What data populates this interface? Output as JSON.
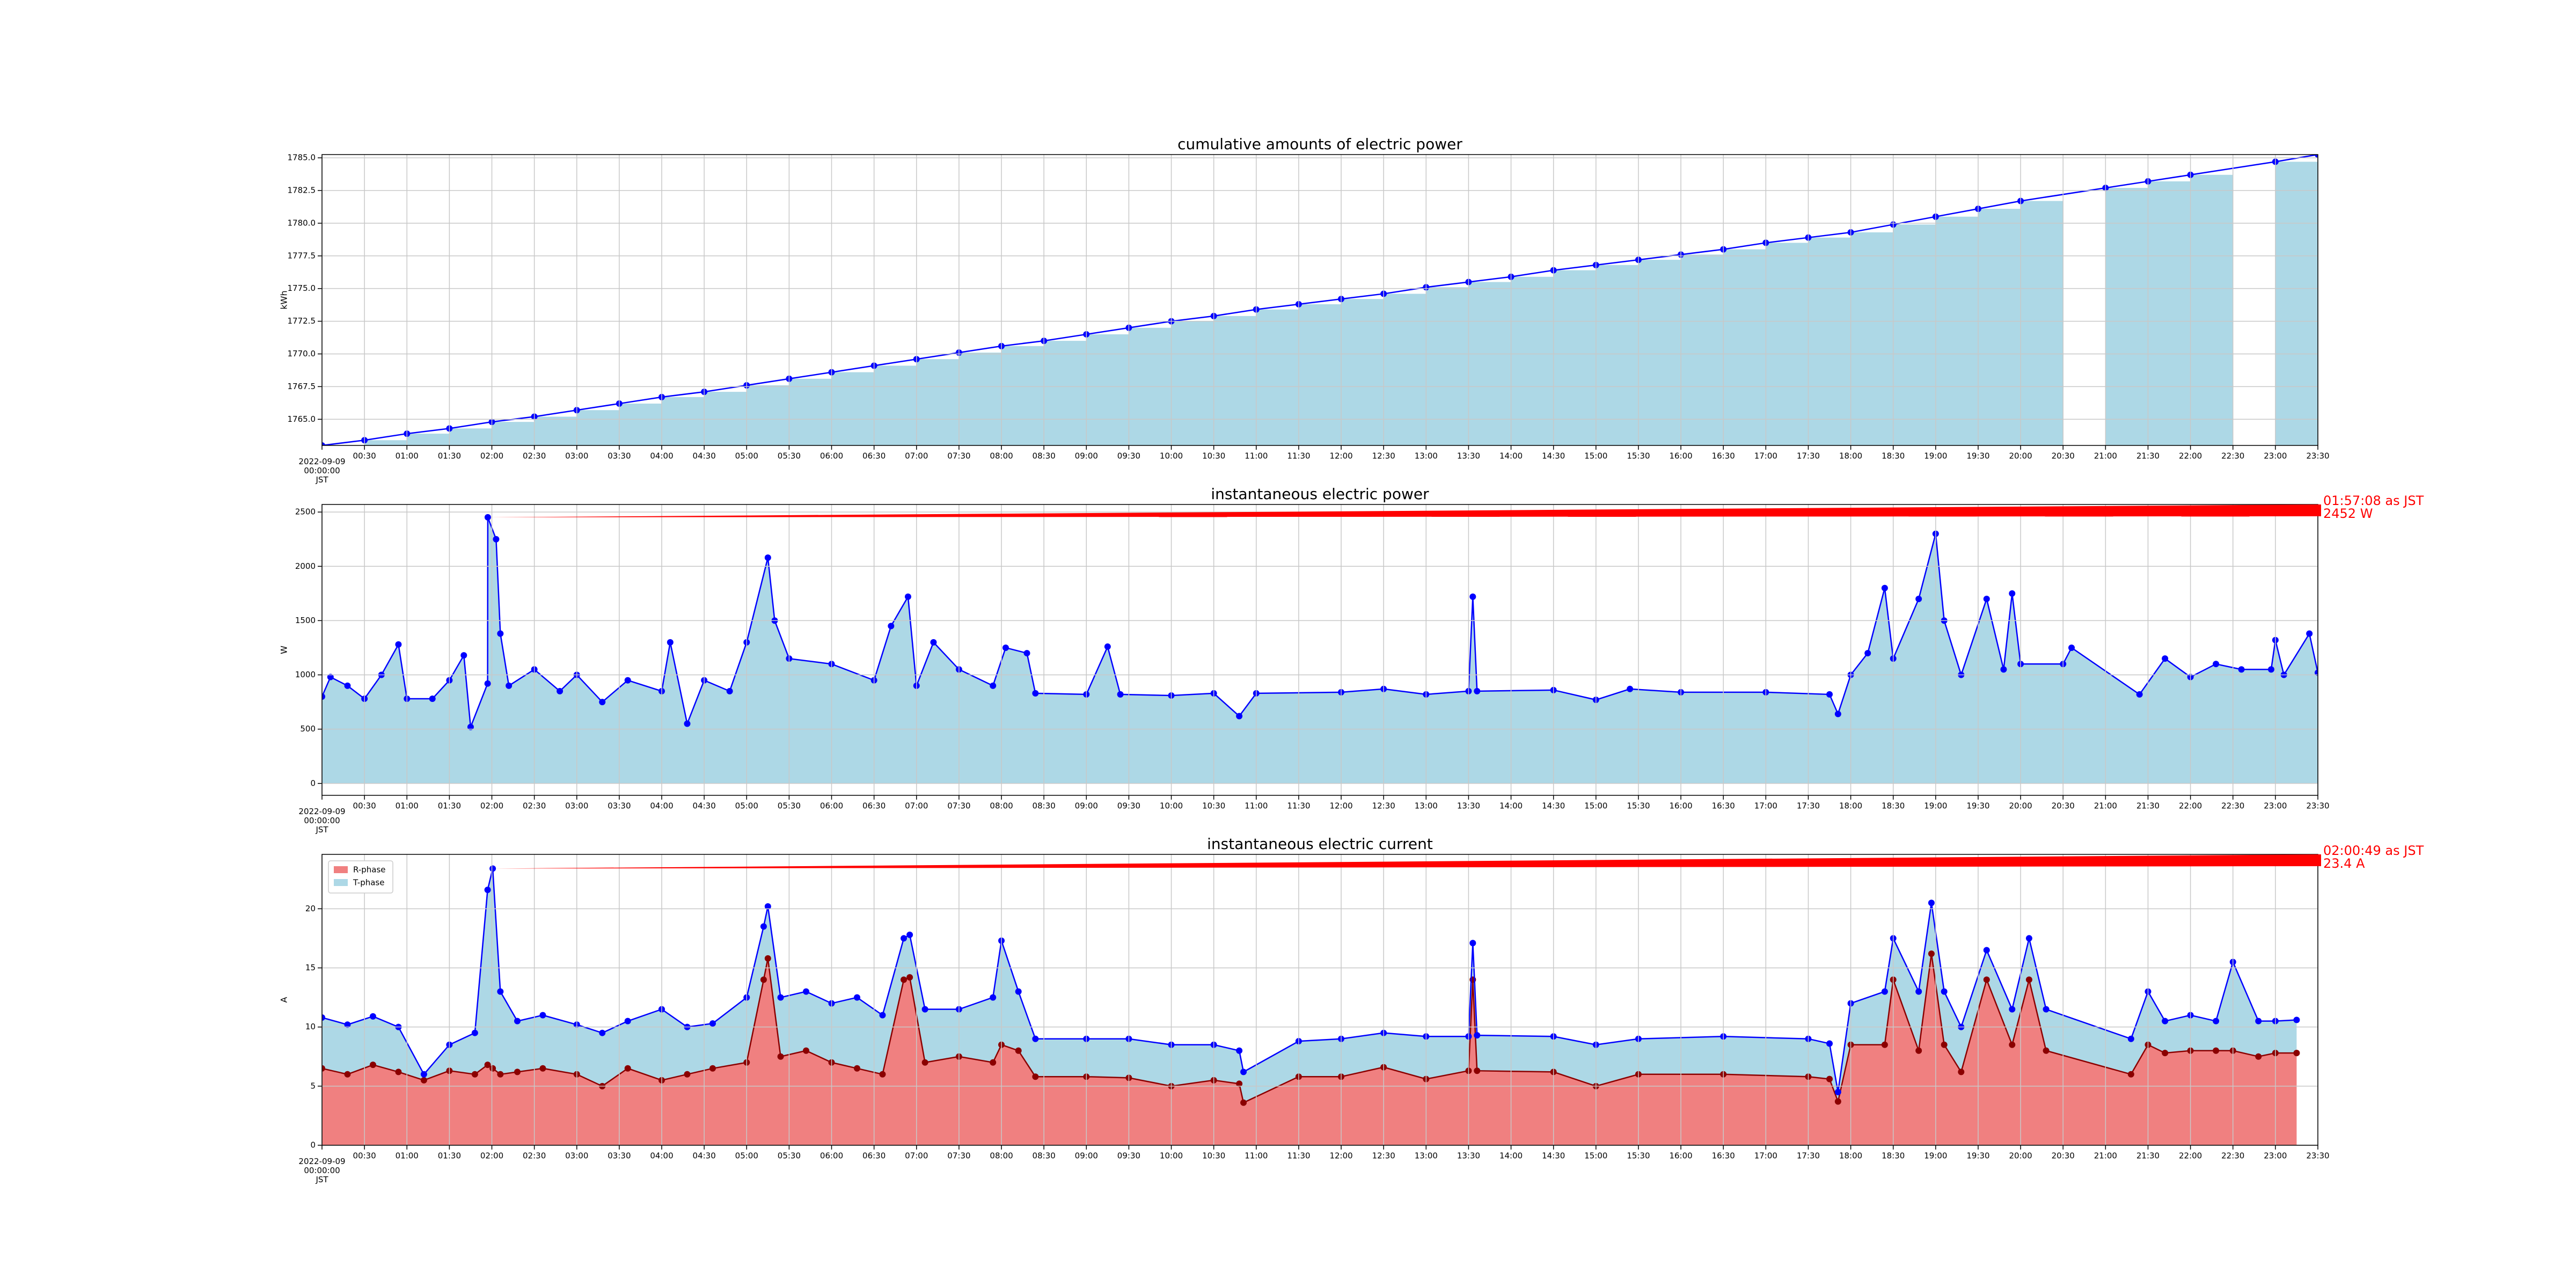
{
  "chart_data": [
    {
      "type": "bar",
      "title": "cumulative amounts of electric power",
      "ylabel": "kWh",
      "color": "#add8e6",
      "line_color": "#0000ff",
      "grid": true,
      "x": [
        0,
        0.5,
        1,
        1.5,
        2,
        2.5,
        3,
        3.5,
        4,
        4.5,
        5,
        5.5,
        6,
        6.5,
        7,
        7.5,
        8,
        8.5,
        9,
        9.5,
        10,
        10.5,
        11,
        11.5,
        12,
        12.5,
        13,
        13.5,
        14,
        14.5,
        15,
        15.5,
        16,
        16.5,
        17,
        17.5,
        18,
        18.5,
        19,
        19.5,
        20,
        21,
        21.5,
        22,
        23,
        23.5
      ],
      "values": [
        1763.0,
        1763.4,
        1763.9,
        1764.3,
        1764.8,
        1765.2,
        1765.7,
        1766.2,
        1766.7,
        1767.1,
        1767.6,
        1768.1,
        1768.6,
        1769.1,
        1769.6,
        1770.1,
        1770.6,
        1771.0,
        1771.5,
        1772.0,
        1772.5,
        1772.9,
        1773.4,
        1773.8,
        1774.2,
        1774.6,
        1775.1,
        1775.5,
        1775.9,
        1776.4,
        1776.8,
        1777.2,
        1777.6,
        1778.0,
        1778.5,
        1778.9,
        1779.3,
        1779.9,
        1780.5,
        1781.1,
        1781.7,
        1782.7,
        1783.2,
        1783.7,
        1784.7,
        1785.25
      ],
      "xlim": [
        0,
        23.5
      ],
      "ylim": [
        1763,
        1785.25
      ],
      "yticks": [
        {
          "value": 1765,
          "label": "1765.0"
        },
        {
          "value": 1767.5,
          "label": "1767.5"
        },
        {
          "value": 1770,
          "label": "1770.0"
        },
        {
          "value": 1772.5,
          "label": "1772.5"
        },
        {
          "value": 1775,
          "label": "1775.0"
        },
        {
          "value": 1777.5,
          "label": "1777.5"
        },
        {
          "value": 1780,
          "label": "1780.0"
        },
        {
          "value": 1782.5,
          "label": "1782.5"
        },
        {
          "value": 1785,
          "label": "1785.0"
        }
      ],
      "xticks": [
        {
          "value": 0,
          "label": "2022-09-09\n00:00:00\nJST"
        },
        {
          "value": 0.5,
          "label": "00:30"
        },
        {
          "value": 1,
          "label": "01:00"
        },
        {
          "value": 1.5,
          "label": "01:30"
        },
        {
          "value": 2,
          "label": "02:00"
        },
        {
          "value": 2.5,
          "label": "02:30"
        },
        {
          "value": 3,
          "label": "03:00"
        },
        {
          "value": 3.5,
          "label": "03:30"
        },
        {
          "value": 4,
          "label": "04:00"
        },
        {
          "value": 4.5,
          "label": "04:30"
        },
        {
          "value": 5,
          "label": "05:00"
        },
        {
          "value": 5.5,
          "label": "05:30"
        },
        {
          "value": 6,
          "label": "06:00"
        },
        {
          "value": 6.5,
          "label": "06:30"
        },
        {
          "value": 7,
          "label": "07:00"
        },
        {
          "value": 7.5,
          "label": "07:30"
        },
        {
          "value": 8,
          "label": "08:00"
        },
        {
          "value": 8.5,
          "label": "08:30"
        },
        {
          "value": 9,
          "label": "09:00"
        },
        {
          "value": 9.5,
          "label": "09:30"
        },
        {
          "value": 10,
          "label": "10:00"
        },
        {
          "value": 10.5,
          "label": "10:30"
        },
        {
          "value": 11,
          "label": "11:00"
        },
        {
          "value": 11.5,
          "label": "11:30"
        },
        {
          "value": 12,
          "label": "12:00"
        },
        {
          "value": 12.5,
          "label": "12:30"
        },
        {
          "value": 13,
          "label": "13:00"
        },
        {
          "value": 13.5,
          "label": "13:30"
        },
        {
          "value": 14,
          "label": "14:00"
        },
        {
          "value": 14.5,
          "label": "14:30"
        },
        {
          "value": 15,
          "label": "15:00"
        },
        {
          "value": 15.5,
          "label": "15:30"
        },
        {
          "value": 16,
          "label": "16:00"
        },
        {
          "value": 16.5,
          "label": "16:30"
        },
        {
          "value": 17,
          "label": "17:00"
        },
        {
          "value": 17.5,
          "label": "17:30"
        },
        {
          "value": 18,
          "label": "18:00"
        },
        {
          "value": 18.5,
          "label": "18:30"
        },
        {
          "value": 19,
          "label": "19:00"
        },
        {
          "value": 19.5,
          "label": "19:30"
        },
        {
          "value": 20,
          "label": "20:00"
        },
        {
          "value": 20.5,
          "label": "20:30"
        },
        {
          "value": 21,
          "label": "21:00"
        },
        {
          "value": 21.5,
          "label": "21:30"
        },
        {
          "value": 22,
          "label": "22:00"
        },
        {
          "value": 22.5,
          "label": "22:30"
        },
        {
          "value": 23,
          "label": "23:00"
        },
        {
          "value": 23.5,
          "label": "23:30"
        }
      ]
    },
    {
      "type": "area",
      "title": "instantaneous electric power",
      "ylabel": "W",
      "color": "#add8e6",
      "line_color": "#0000ff",
      "grid": true,
      "x": [
        0,
        0.1,
        0.3,
        0.5,
        0.7,
        0.9,
        1.0,
        1.3,
        1.5,
        1.67,
        1.75,
        1.95,
        1.952,
        2.05,
        2.1,
        2.2,
        2.5,
        2.8,
        3.0,
        3.3,
        3.6,
        4.0,
        4.1,
        4.3,
        4.5,
        4.8,
        5.0,
        5.25,
        5.33,
        5.5,
        6.0,
        6.5,
        6.7,
        6.9,
        7.0,
        7.2,
        7.5,
        7.9,
        8.05,
        8.3,
        8.4,
        9.0,
        9.25,
        9.4,
        10.0,
        10.5,
        10.8,
        11.0,
        12.0,
        12.5,
        13.0,
        13.5,
        13.55,
        13.6,
        14.5,
        15.0,
        15.4,
        16.0,
        17.0,
        17.75,
        17.85,
        18.0,
        18.2,
        18.4,
        18.5,
        18.8,
        19.0,
        19.1,
        19.3,
        19.6,
        19.8,
        19.9,
        20.0,
        20.5,
        20.6,
        21.4,
        21.7,
        22.0,
        22.3,
        22.6,
        22.95,
        23.0,
        23.1,
        23.4,
        23.5
      ],
      "values": [
        800,
        980,
        900,
        780,
        1000,
        1280,
        780,
        780,
        950,
        1180,
        520,
        920,
        2452,
        2250,
        1380,
        900,
        1050,
        850,
        1000,
        750,
        950,
        850,
        1300,
        550,
        950,
        850,
        1300,
        2080,
        1500,
        1150,
        1100,
        950,
        1450,
        1720,
        900,
        1300,
        1050,
        900,
        1250,
        1200,
        830,
        820,
        1260,
        820,
        810,
        830,
        620,
        830,
        840,
        870,
        820,
        850,
        1720,
        850,
        860,
        770,
        870,
        840,
        840,
        820,
        640,
        1000,
        1200,
        1800,
        1150,
        1700,
        2300,
        1500,
        1000,
        1700,
        1050,
        1750,
        1100,
        1100,
        1250,
        820,
        1150,
        980,
        1100,
        1050,
        1050,
        1320,
        1000,
        1380,
        1020
      ],
      "annotation": [
        "01:57:08 as JST",
        "2452 W"
      ],
      "xlim": [
        0,
        23.5
      ],
      "ylim": [
        -110,
        2570
      ],
      "yticks": [
        0,
        500,
        1000,
        1500,
        2000,
        2500
      ],
      "xticks": [
        {
          "value": 0,
          "label": "2022-09-09\n00:00:00\nJST"
        },
        {
          "value": 0.5,
          "label": "00:30"
        },
        {
          "value": 1,
          "label": "01:00"
        },
        {
          "value": 1.5,
          "label": "01:30"
        },
        {
          "value": 2,
          "label": "02:00"
        },
        {
          "value": 2.5,
          "label": "02:30"
        },
        {
          "value": 3,
          "label": "03:00"
        },
        {
          "value": 3.5,
          "label": "03:30"
        },
        {
          "value": 4,
          "label": "04:00"
        },
        {
          "value": 4.5,
          "label": "04:30"
        },
        {
          "value": 5,
          "label": "05:00"
        },
        {
          "value": 5.5,
          "label": "05:30"
        },
        {
          "value": 6,
          "label": "06:00"
        },
        {
          "value": 6.5,
          "label": "06:30"
        },
        {
          "value": 7,
          "label": "07:00"
        },
        {
          "value": 7.5,
          "label": "07:30"
        },
        {
          "value": 8,
          "label": "08:00"
        },
        {
          "value": 8.5,
          "label": "08:30"
        },
        {
          "value": 9,
          "label": "09:00"
        },
        {
          "value": 9.5,
          "label": "09:30"
        },
        {
          "value": 10,
          "label": "10:00"
        },
        {
          "value": 10.5,
          "label": "10:30"
        },
        {
          "value": 11,
          "label": "11:00"
        },
        {
          "value": 11.5,
          "label": "11:30"
        },
        {
          "value": 12,
          "label": "12:00"
        },
        {
          "value": 12.5,
          "label": "12:30"
        },
        {
          "value": 13,
          "label": "13:00"
        },
        {
          "value": 13.5,
          "label": "13:30"
        },
        {
          "value": 14,
          "label": "14:00"
        },
        {
          "value": 14.5,
          "label": "14:30"
        },
        {
          "value": 15,
          "label": "15:00"
        },
        {
          "value": 15.5,
          "label": "15:30"
        },
        {
          "value": 16,
          "label": "16:00"
        },
        {
          "value": 16.5,
          "label": "16:30"
        },
        {
          "value": 17,
          "label": "17:00"
        },
        {
          "value": 17.5,
          "label": "17:30"
        },
        {
          "value": 18,
          "label": "18:00"
        },
        {
          "value": 18.5,
          "label": "18:30"
        },
        {
          "value": 19,
          "label": "19:00"
        },
        {
          "value": 19.5,
          "label": "19:30"
        },
        {
          "value": 20,
          "label": "20:00"
        },
        {
          "value": 20.5,
          "label": "20:30"
        },
        {
          "value": 21,
          "label": "21:00"
        },
        {
          "value": 21.5,
          "label": "21:30"
        },
        {
          "value": 22,
          "label": "22:00"
        },
        {
          "value": 22.5,
          "label": "22:30"
        },
        {
          "value": 23,
          "label": "23:00"
        },
        {
          "value": 23.5,
          "label": "23:30"
        }
      ]
    },
    {
      "type": "area",
      "title": "instantaneous electric current",
      "ylabel": "A",
      "grid": true,
      "legend": "upper left",
      "x": [
        0,
        0.3,
        0.6,
        0.9,
        1.2,
        1.5,
        1.8,
        1.95,
        2.01,
        2.1,
        2.3,
        2.6,
        3.0,
        3.3,
        3.6,
        4.0,
        4.3,
        4.6,
        5.0,
        5.2,
        5.25,
        5.4,
        5.7,
        6.0,
        6.3,
        6.6,
        6.85,
        6.92,
        7.1,
        7.5,
        7.9,
        8.0,
        8.2,
        8.4,
        9.0,
        9.5,
        10.0,
        10.5,
        10.8,
        10.85,
        11.5,
        12.0,
        12.5,
        13.0,
        13.5,
        13.55,
        13.6,
        14.5,
        15.0,
        15.5,
        16.5,
        17.5,
        17.75,
        17.85,
        18.0,
        18.4,
        18.5,
        18.8,
        18.95,
        19.1,
        19.3,
        19.6,
        19.9,
        20.1,
        20.3,
        21.3,
        21.5,
        21.7,
        22.0,
        22.3,
        22.5,
        22.8,
        23.0,
        23.25
      ],
      "series": [
        {
          "name": "R-phase",
          "color": "#f08080",
          "line_color": "#8b0000",
          "values": [
            6.5,
            6.0,
            6.8,
            6.2,
            5.5,
            6.3,
            6.0,
            6.8,
            6.5,
            6.0,
            6.2,
            6.5,
            6.0,
            5.0,
            6.5,
            5.5,
            6.0,
            6.5,
            7.0,
            14.0,
            15.8,
            7.5,
            8.0,
            7.0,
            6.5,
            6.0,
            14.0,
            14.2,
            7.0,
            7.5,
            7.0,
            8.5,
            8.0,
            5.8,
            5.8,
            5.7,
            5.0,
            5.5,
            5.2,
            3.6,
            5.8,
            5.8,
            6.6,
            5.6,
            6.3,
            14.0,
            6.3,
            6.2,
            5.0,
            6.0,
            6.0,
            5.8,
            5.6,
            3.7,
            8.5,
            8.5,
            14.0,
            8.0,
            16.2,
            8.5,
            6.2,
            14.0,
            8.5,
            14.0,
            8.0,
            6.0,
            8.5,
            7.8,
            8.0,
            8.0,
            8.0,
            7.5,
            7.8,
            7.8
          ]
        },
        {
          "name": "T-phase",
          "color": "#add8e6",
          "line_color": "#0000ff",
          "values": [
            10.8,
            10.2,
            10.9,
            10.0,
            6.0,
            8.5,
            9.5,
            21.6,
            23.4,
            13.0,
            10.5,
            11.0,
            10.2,
            9.5,
            10.5,
            11.5,
            10.0,
            10.3,
            12.5,
            18.5,
            20.2,
            12.5,
            13.0,
            12.0,
            12.5,
            11.0,
            17.5,
            17.8,
            11.5,
            11.5,
            12.5,
            17.3,
            13.0,
            9.0,
            9.0,
            9.0,
            8.5,
            8.5,
            8.0,
            6.2,
            8.8,
            9.0,
            9.5,
            9.2,
            9.2,
            17.1,
            9.3,
            9.2,
            8.5,
            9.0,
            9.2,
            9.0,
            8.6,
            4.5,
            12.0,
            13.0,
            17.5,
            13.0,
            20.5,
            13.0,
            10.0,
            16.5,
            11.5,
            17.5,
            11.5,
            9.0,
            13.0,
            10.5,
            11.0,
            10.5,
            15.5,
            10.5,
            10.5,
            10.6
          ]
        }
      ],
      "annotation": [
        "02:00:49 as JST",
        "23.4 A"
      ],
      "xlim": [
        0,
        23.5
      ],
      "ylim": [
        0,
        24.6
      ],
      "yticks": [
        0,
        5,
        10,
        15,
        20
      ],
      "xticks": [
        {
          "value": 0,
          "label": "2022-09-09\n00:00:00\nJST"
        },
        {
          "value": 0.5,
          "label": "00:30"
        },
        {
          "value": 1,
          "label": "01:00"
        },
        {
          "value": 1.5,
          "label": "01:30"
        },
        {
          "value": 2,
          "label": "02:00"
        },
        {
          "value": 2.5,
          "label": "02:30"
        },
        {
          "value": 3,
          "label": "03:00"
        },
        {
          "value": 3.5,
          "label": "03:30"
        },
        {
          "value": 4,
          "label": "04:00"
        },
        {
          "value": 4.5,
          "label": "04:30"
        },
        {
          "value": 5,
          "label": "05:00"
        },
        {
          "value": 5.5,
          "label": "05:30"
        },
        {
          "value": 6,
          "label": "06:00"
        },
        {
          "value": 6.5,
          "label": "06:30"
        },
        {
          "value": 7,
          "label": "07:00"
        },
        {
          "value": 7.5,
          "label": "07:30"
        },
        {
          "value": 8,
          "label": "08:00"
        },
        {
          "value": 8.5,
          "label": "08:30"
        },
        {
          "value": 9,
          "label": "09:00"
        },
        {
          "value": 9.5,
          "label": "09:30"
        },
        {
          "value": 10,
          "label": "10:00"
        },
        {
          "value": 10.5,
          "label": "10:30"
        },
        {
          "value": 11,
          "label": "11:00"
        },
        {
          "value": 11.5,
          "label": "11:30"
        },
        {
          "value": 12,
          "label": "12:00"
        },
        {
          "value": 12.5,
          "label": "12:30"
        },
        {
          "value": 13,
          "label": "13:00"
        },
        {
          "value": 13.5,
          "label": "13:30"
        },
        {
          "value": 14,
          "label": "14:00"
        },
        {
          "value": 14.5,
          "label": "14:30"
        },
        {
          "value": 15,
          "label": "15:00"
        },
        {
          "value": 15.5,
          "label": "15:30"
        },
        {
          "value": 16,
          "label": "16:00"
        },
        {
          "value": 16.5,
          "label": "16:30"
        },
        {
          "value": 17,
          "label": "17:00"
        },
        {
          "value": 17.5,
          "label": "17:30"
        },
        {
          "value": 18,
          "label": "18:00"
        },
        {
          "value": 18.5,
          "label": "18:30"
        },
        {
          "value": 19,
          "label": "19:00"
        },
        {
          "value": 19.5,
          "label": "19:30"
        },
        {
          "value": 20,
          "label": "20:00"
        },
        {
          "value": 20.5,
          "label": "20:30"
        },
        {
          "value": 21,
          "label": "21:00"
        },
        {
          "value": 21.5,
          "label": "21:30"
        },
        {
          "value": 22,
          "label": "22:00"
        },
        {
          "value": 22.5,
          "label": "22:30"
        },
        {
          "value": 23,
          "label": "23:00"
        },
        {
          "value": 23.5,
          "label": "23:30"
        }
      ]
    }
  ]
}
